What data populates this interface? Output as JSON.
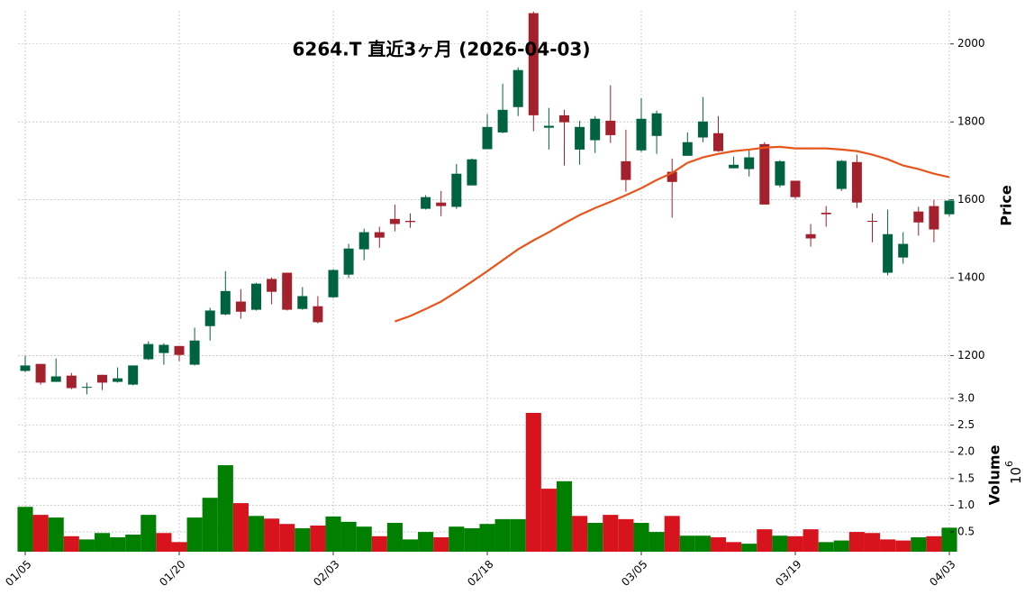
{
  "chart_data": {
    "type": "candlestick",
    "title": "6264.T  直近3ヶ月  (2026-04-03)",
    "ylabel": "Price",
    "volume_label": "Volume",
    "volume_scale": {
      "base": "10",
      "exponent": "6"
    },
    "categories": [
      "01/05",
      null,
      null,
      null,
      null,
      null,
      null,
      null,
      null,
      null,
      "01/20",
      null,
      null,
      null,
      null,
      null,
      null,
      null,
      null,
      null,
      "02/03",
      null,
      null,
      null,
      null,
      null,
      null,
      null,
      null,
      null,
      "02/18",
      null,
      null,
      null,
      null,
      null,
      null,
      null,
      null,
      null,
      "03/05",
      null,
      null,
      null,
      null,
      null,
      null,
      null,
      null,
      null,
      "03/19",
      null,
      null,
      null,
      null,
      null,
      null,
      null,
      null,
      null,
      "04/03"
    ],
    "open": [
      1161,
      1179,
      1133,
      1149,
      1119,
      1151,
      1133,
      1126,
      1191,
      1207,
      1225,
      1177,
      1276,
      1306,
      1339,
      1318,
      1397,
      1413,
      1320,
      1327,
      1350,
      1408,
      1473,
      1517,
      1551,
      1546,
      1577,
      1593,
      1582,
      1637,
      1730,
      1773,
      1838,
      2079,
      1785,
      1817,
      1729,
      1753,
      1803,
      1699,
      1727,
      1764,
      1672,
      1713,
      1760,
      1771,
      1681,
      1679,
      1743,
      1637,
      1649,
      1512,
      1567,
      1628,
      1697,
      1546,
      1413,
      1452,
      1570,
      1584,
      1563
    ],
    "high": [
      1200,
      1179,
      1193,
      1156,
      1131,
      1151,
      1170,
      1175,
      1237,
      1232,
      1225,
      1272,
      1323,
      1417,
      1371,
      1387,
      1401,
      1413,
      1376,
      1353,
      1422,
      1487,
      1526,
      1531,
      1588,
      1565,
      1612,
      1623,
      1692,
      1706,
      1820,
      1898,
      1940,
      2083,
      1836,
      1831,
      1803,
      1815,
      1894,
      1780,
      1861,
      1829,
      1706,
      1773,
      1864,
      1815,
      1711,
      1729,
      1748,
      1702,
      1649,
      1538,
      1584,
      1702,
      1716,
      1565,
      1575,
      1517,
      1582,
      1600,
      1602
    ],
    "low": [
      1158,
      1126,
      1133,
      1114,
      1101,
      1112,
      1131,
      1124,
      1189,
      1177,
      1186,
      1175,
      1239,
      1304,
      1295,
      1316,
      1332,
      1316,
      1318,
      1283,
      1348,
      1399,
      1445,
      1477,
      1519,
      1528,
      1575,
      1558,
      1577,
      1637,
      1730,
      1771,
      1815,
      1776,
      1729,
      1688,
      1690,
      1720,
      1746,
      1621,
      1723,
      1718,
      1554,
      1713,
      1748,
      1723,
      1681,
      1660,
      1588,
      1632,
      1602,
      1480,
      1531,
      1623,
      1579,
      1491,
      1406,
      1436,
      1508,
      1491,
      1558
    ],
    "close": [
      1175,
      1131,
      1147,
      1117,
      1120,
      1131,
      1142,
      1175,
      1230,
      1228,
      1202,
      1239,
      1316,
      1366,
      1313,
      1385,
      1364,
      1318,
      1353,
      1286,
      1420,
      1475,
      1517,
      1503,
      1538,
      1543,
      1607,
      1584,
      1667,
      1704,
      1787,
      1831,
      1933,
      1817,
      1790,
      1799,
      1787,
      1808,
      1766,
      1651,
      1808,
      1822,
      1646,
      1748,
      1801,
      1725,
      1690,
      1709,
      1588,
      1699,
      1607,
      1501,
      1563,
      1700,
      1593,
      1544,
      1512,
      1487,
      1542,
      1524,
      1598
    ],
    "volume": [
      0.97,
      0.82,
      0.77,
      0.42,
      0.36,
      0.48,
      0.4,
      0.45,
      0.82,
      0.48,
      0.31,
      0.77,
      1.14,
      1.75,
      1.04,
      0.8,
      0.75,
      0.65,
      0.57,
      0.62,
      0.79,
      0.69,
      0.6,
      0.42,
      0.67,
      0.36,
      0.5,
      0.4,
      0.6,
      0.57,
      0.65,
      0.74,
      0.74,
      2.73,
      1.31,
      1.45,
      0.8,
      0.67,
      0.82,
      0.74,
      0.67,
      0.5,
      0.8,
      0.43,
      0.43,
      0.4,
      0.31,
      0.28,
      0.55,
      0.43,
      0.42,
      0.55,
      0.31,
      0.34,
      0.5,
      0.48,
      0.36,
      0.34,
      0.4,
      0.42,
      0.58
    ],
    "moving_average": {
      "color": "#e8561c",
      "values": [
        null,
        null,
        null,
        null,
        null,
        null,
        null,
        null,
        null,
        null,
        null,
        null,
        null,
        null,
        null,
        null,
        null,
        null,
        null,
        null,
        null,
        null,
        null,
        null,
        1288,
        1302,
        1320,
        1339,
        1364,
        1390,
        1417,
        1445,
        1473,
        1496,
        1517,
        1540,
        1561,
        1579,
        1595,
        1612,
        1630,
        1651,
        1669,
        1695,
        1709,
        1718,
        1725,
        1729,
        1734,
        1736,
        1732,
        1732,
        1732,
        1729,
        1725,
        1716,
        1704,
        1688,
        1679,
        1667,
        1658
      ]
    },
    "up_color": "#006340",
    "down_color": "#a3202d",
    "volume_up_color": "#007f00",
    "volume_down_color": "#d7131d",
    "ylim": [
      1095,
      2085
    ],
    "yticks": [
      1200,
      1400,
      1600,
      1800,
      2000
    ],
    "volume_ylim": [
      0.13,
      3.0
    ],
    "volume_ticks": [
      0.5,
      {
        "value": 1,
        "label": "1.0"
      },
      1.5,
      {
        "value": 2,
        "label": "2.0"
      },
      2.5,
      {
        "value": 3,
        "label": "3.0"
      }
    ],
    "grid": true
  }
}
